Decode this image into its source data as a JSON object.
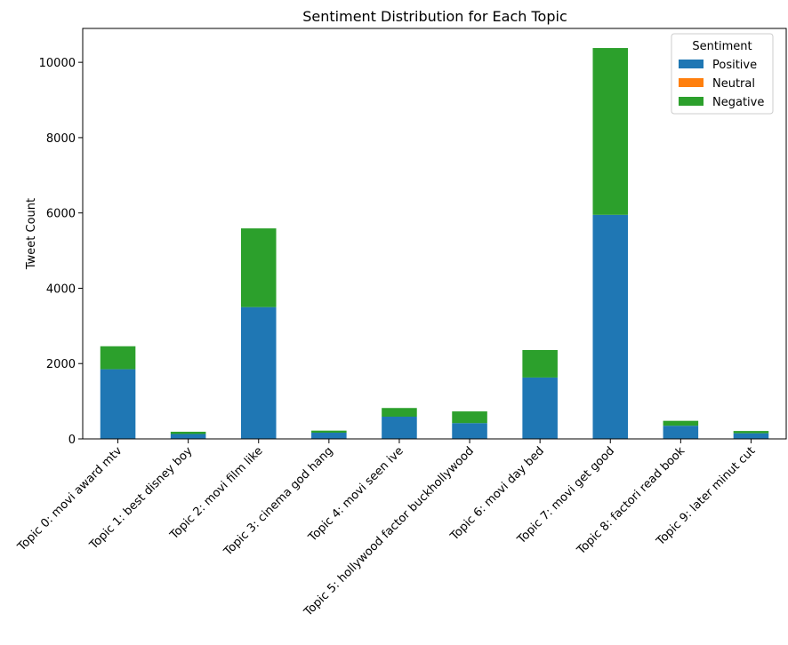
{
  "chart_data": {
    "type": "bar",
    "stacked": true,
    "title": "Sentiment Distribution for Each Topic",
    "xlabel": "",
    "ylabel": "Tweet Count",
    "ylim": [
      0,
      10900
    ],
    "yticks": [
      0,
      2000,
      4000,
      6000,
      8000,
      10000
    ],
    "grid": false,
    "categories": [
      "Topic 0: movi award mtv",
      "Topic 1: best disney boy",
      "Topic 2: movi film like",
      "Topic 3: cinema god hang",
      "Topic 4: movi seen ive",
      "Topic 5: hollywood factor buckhollywood",
      "Topic 6: movi day bed",
      "Topic 7: movi get good",
      "Topic 8: factori read book",
      "Topic 9: later minut cut"
    ],
    "series": [
      {
        "name": "Positive",
        "color": "#1f77b4",
        "values": [
          1850,
          130,
          3500,
          165,
          590,
          420,
          1630,
          5950,
          350,
          150
        ]
      },
      {
        "name": "Neutral",
        "color": "#ff7f0e",
        "values": [
          0,
          0,
          0,
          0,
          0,
          0,
          0,
          0,
          0,
          0
        ]
      },
      {
        "name": "Negative",
        "color": "#2ca02c",
        "values": [
          610,
          60,
          2090,
          55,
          230,
          310,
          730,
          4430,
          130,
          60
        ]
      }
    ],
    "legend": {
      "title": "Sentiment",
      "placement": "top-right"
    }
  }
}
